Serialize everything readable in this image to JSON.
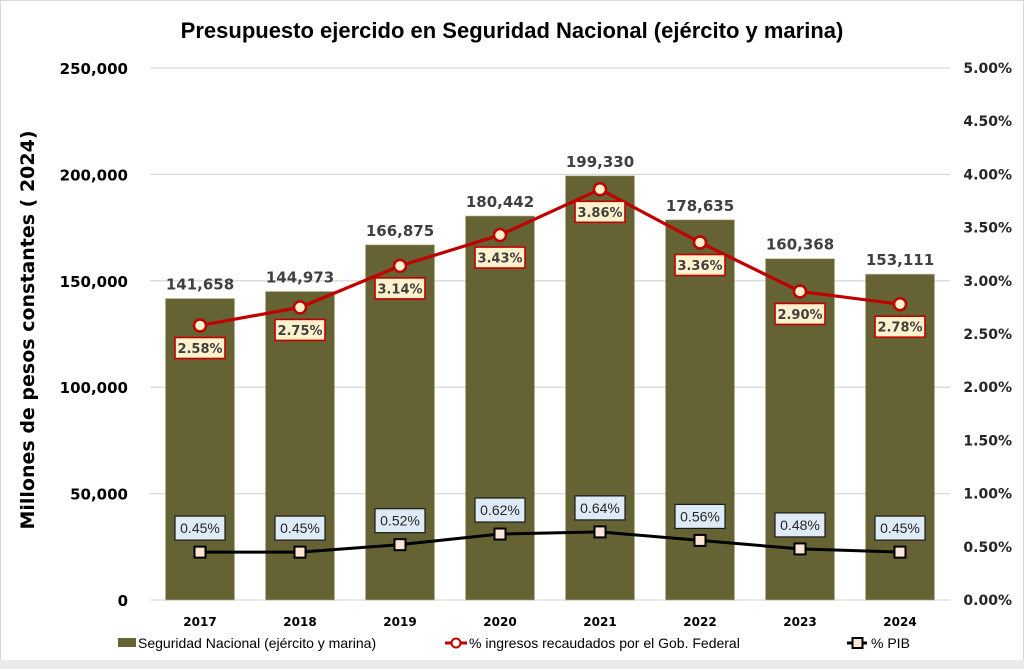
{
  "chart_data": {
    "type": "bar",
    "title": "Presupuesto ejercido en Seguridad Nacional (ejército y marina)",
    "xlabel": "",
    "ylabel": "Millones de pesos constantes ( 2024)",
    "y2label": "",
    "categories": [
      "2017",
      "2018",
      "2019",
      "2020",
      "2021",
      "2022",
      "2023",
      "2024"
    ],
    "ylim": [
      0,
      250000
    ],
    "y_ticks": [
      0,
      50000,
      100000,
      150000,
      200000,
      250000
    ],
    "y_tick_labels": [
      "0",
      "50,000",
      "100,000",
      "150,000",
      "200,000",
      "250,000"
    ],
    "y2lim": [
      0,
      5.0
    ],
    "y2_ticks": [
      0,
      0.5,
      1,
      1.5,
      2,
      2.5,
      3,
      3.5,
      4,
      4.5,
      5
    ],
    "y2_tick_labels": [
      "0.00%",
      "0.50%",
      "1.00%",
      "1.50%",
      "2.00%",
      "2.50%",
      "3.00%",
      "3.50%",
      "4.00%",
      "4.50%",
      "5.00%"
    ],
    "grid": true,
    "legend_position": "bottom",
    "series": [
      {
        "name": "Seguridad Nacional (ejército y marina)",
        "type": "bar",
        "axis": "left",
        "color": "#656333",
        "values": [
          141658,
          144973,
          166875,
          180442,
          199330,
          178635,
          160368,
          153111
        ],
        "labels": [
          "141,658",
          "144,973",
          "166,875",
          "180,442",
          "199,330",
          "178,635",
          "160,368",
          "153,111"
        ]
      },
      {
        "name": "% ingresos recaudados por el Gob. Federal",
        "type": "line",
        "axis": "right",
        "color": "#c00000",
        "marker": "circle",
        "values": [
          2.58,
          2.75,
          3.14,
          3.43,
          3.86,
          3.36,
          2.9,
          2.78
        ],
        "labels": [
          "2.58%",
          "2.75%",
          "3.14%",
          "3.43%",
          "3.86%",
          "3.36%",
          "2.90%",
          "2.78%"
        ]
      },
      {
        "name": "% PIB",
        "type": "line",
        "axis": "right",
        "color": "#000000",
        "marker": "square",
        "values": [
          0.45,
          0.45,
          0.52,
          0.62,
          0.64,
          0.56,
          0.48,
          0.45
        ],
        "labels": [
          "0.45%",
          "0.45%",
          "0.52%",
          "0.62%",
          "0.64%",
          "0.56%",
          "0.48%",
          "0.45%"
        ]
      }
    ]
  },
  "colors": {
    "bar": "#656333",
    "red_line": "#c00000",
    "red_label_bg": "#fff2cc",
    "pib_line": "#000000",
    "pib_marker_fill": "#fbe5d6",
    "pib_label_bg": "#deebf7",
    "grid": "#d9d9d9"
  }
}
